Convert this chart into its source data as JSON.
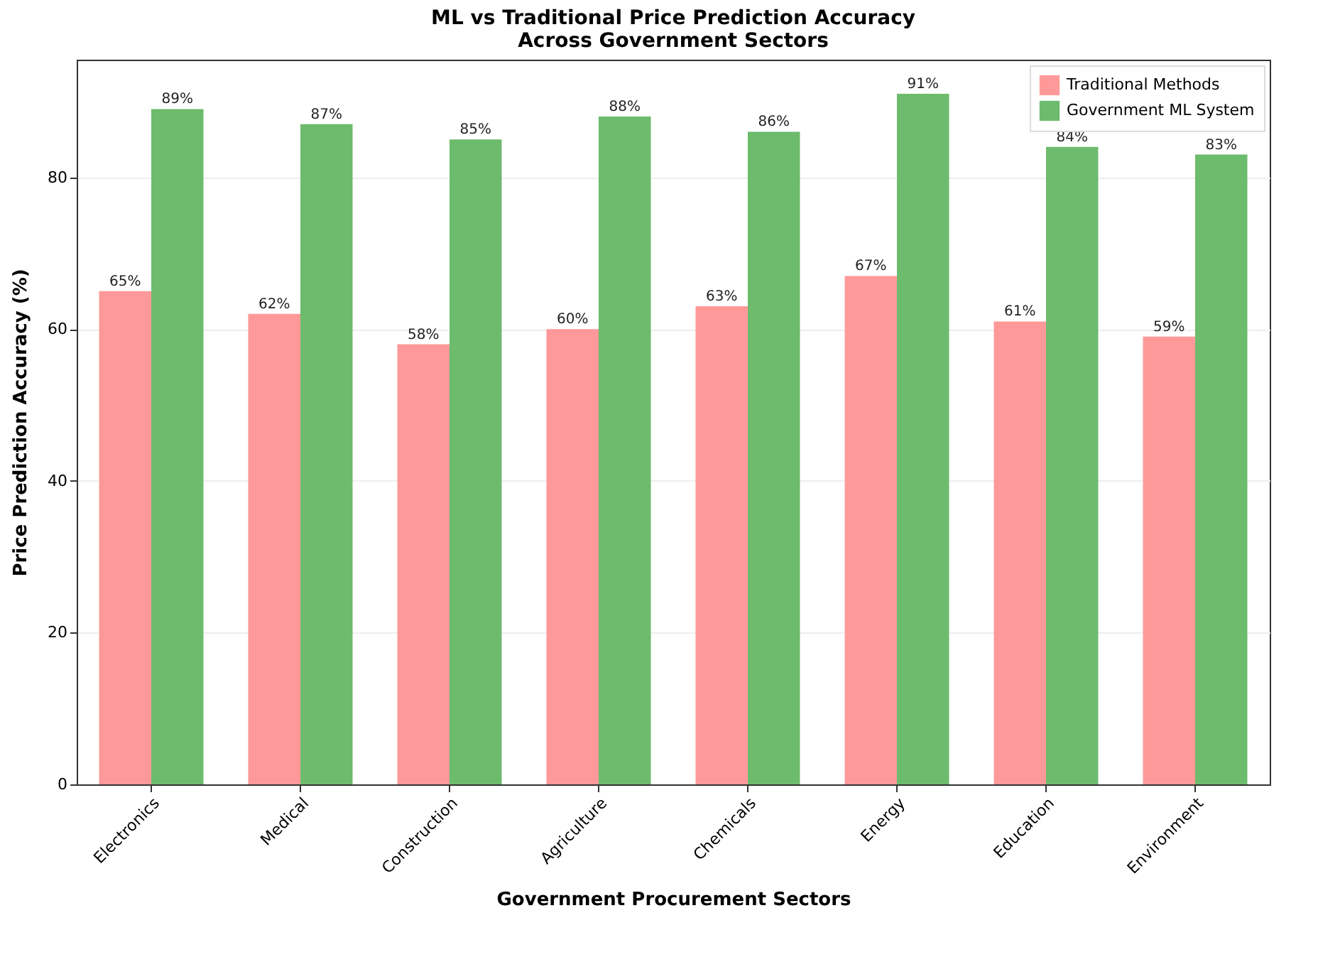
{
  "chart_data": {
    "type": "bar",
    "title": "ML vs Traditional Price Prediction Accuracy\nAcross Government Sectors",
    "xlabel": "Government Procurement Sectors",
    "ylabel": "Price Prediction Accuracy (%)",
    "categories": [
      "Electronics",
      "Medical",
      "Construction",
      "Agriculture",
      "Chemicals",
      "Energy",
      "Education",
      "Environment"
    ],
    "series": [
      {
        "name": "Traditional Methods",
        "color": "#ff9999",
        "values": [
          65,
          62,
          58,
          60,
          63,
          67,
          61,
          59
        ],
        "value_labels": [
          "65%",
          "62%",
          "58%",
          "60%",
          "63%",
          "67%",
          "61%",
          "59%"
        ]
      },
      {
        "name": "Government ML System",
        "color": "#6dbb6d",
        "values": [
          89,
          87,
          85,
          88,
          86,
          91,
          84,
          83
        ],
        "value_labels": [
          "89%",
          "87%",
          "85%",
          "88%",
          "86%",
          "91%",
          "84%",
          "83%"
        ]
      }
    ],
    "ylim": [
      0,
      95.5
    ],
    "yticks": [
      0,
      20,
      40,
      60,
      80
    ],
    "grid": "y",
    "legend": "top right"
  }
}
